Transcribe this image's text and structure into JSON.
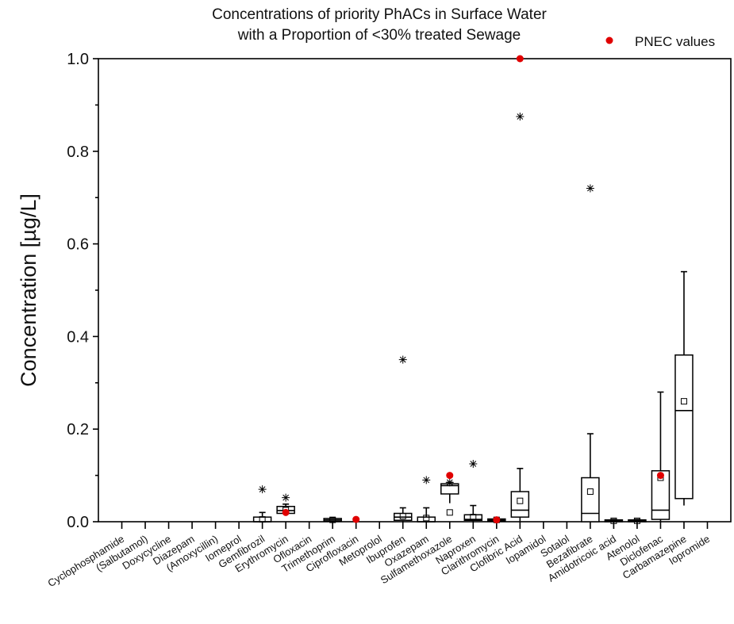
{
  "chart_data": {
    "type": "box",
    "title_lines": [
      "Concentrations of priority PhACs in Surface Water",
      "with a Proportion of <30% treated Sewage"
    ],
    "ylabel": "Concentration [µg/L]",
    "ylim": [
      0,
      1.0
    ],
    "yticks": [
      0.0,
      0.2,
      0.4,
      0.6,
      0.8,
      1.0
    ],
    "ytick_labels": [
      "0.0",
      "0.2",
      "0.4",
      "0.6",
      "0.8",
      "1.0"
    ],
    "grid": false,
    "legend": {
      "position": "top-right",
      "entries": [
        {
          "label": "PNEC values",
          "color": "#e00000",
          "marker": "circle"
        }
      ]
    },
    "categories": [
      "Cyclophosphamide",
      "(Salbutamol)",
      "Doxycycline",
      "Diazepam",
      "(Amoxycillin)",
      "Iomeprol",
      "Gemfibrozil",
      "Erythromycin",
      "Ofloxacin",
      "Trimethoprim",
      "Ciprofloxacin",
      "Metoprolol",
      "Ibuprofen",
      "Oxazepam",
      "Sulfamethoxazole",
      "Naproxen",
      "Clarithromycin",
      "Clofibric Acid",
      "Iopamidol",
      "Sotalol",
      "Bezafibrate",
      "Amidotricoic acid",
      "Atenolol",
      "Diclofenac",
      "Carbamazepine",
      "Iopromide"
    ],
    "boxes": [
      {
        "category": "Gemfibrozil",
        "q1": 0.0,
        "median": 0.0,
        "q3": 0.01,
        "whisker_low": 0.0,
        "whisker_high": 0.02,
        "mean": 0.005,
        "outliers": [
          0.07
        ]
      },
      {
        "category": "Erythromycin",
        "q1": 0.018,
        "median": 0.024,
        "q3": 0.033,
        "whisker_low": 0.015,
        "whisker_high": 0.038,
        "mean": 0.025,
        "outliers": [
          0.052
        ]
      },
      {
        "category": "Trimethoprim",
        "q1": 0.001,
        "median": 0.004,
        "q3": 0.007,
        "whisker_low": 0.0,
        "whisker_high": 0.008,
        "mean": 0.004,
        "outliers": []
      },
      {
        "category": "Ibuprofen",
        "q1": 0.003,
        "median": 0.01,
        "q3": 0.018,
        "whisker_low": 0.0,
        "whisker_high": 0.03,
        "mean": 0.012,
        "outliers": [
          0.35
        ]
      },
      {
        "category": "Oxazepam",
        "q1": 0.0,
        "median": 0.0,
        "q3": 0.01,
        "whisker_low": 0.0,
        "whisker_high": 0.03,
        "mean": 0.008,
        "outliers": [
          0.09
        ]
      },
      {
        "category": "Sulfamethoxazole",
        "q1": 0.06,
        "median": 0.078,
        "q3": 0.082,
        "whisker_low": 0.04,
        "whisker_high": 0.085,
        "mean": 0.02,
        "outliers": [
          0.085
        ]
      },
      {
        "category": "Naproxen",
        "q1": 0.003,
        "median": 0.005,
        "q3": 0.015,
        "whisker_low": 0.0,
        "whisker_high": 0.035,
        "mean": 0.01,
        "outliers": [
          0.125
        ]
      },
      {
        "category": "Clarithromycin",
        "q1": 0.002,
        "median": 0.004,
        "q3": 0.006,
        "whisker_low": 0.0,
        "whisker_high": 0.007,
        "mean": 0.004,
        "outliers": []
      },
      {
        "category": "Clofibric Acid",
        "q1": 0.01,
        "median": 0.025,
        "q3": 0.065,
        "whisker_low": 0.0,
        "whisker_high": 0.115,
        "mean": 0.045,
        "outliers": [
          0.875
        ]
      },
      {
        "category": "Bezafibrate",
        "q1": 0.0,
        "median": 0.018,
        "q3": 0.095,
        "whisker_low": 0.0,
        "whisker_high": 0.19,
        "mean": 0.065,
        "outliers": [
          0.72
        ]
      },
      {
        "category": "Amidotricoic acid",
        "q1": 0.0,
        "median": 0.002,
        "q3": 0.004,
        "whisker_low": 0.0,
        "whisker_high": 0.005,
        "mean": 0.002,
        "outliers": []
      },
      {
        "category": "Atenolol",
        "q1": 0.0,
        "median": 0.002,
        "q3": 0.004,
        "whisker_low": 0.0,
        "whisker_high": 0.005,
        "mean": 0.002,
        "outliers": []
      },
      {
        "category": "Diclofenac",
        "q1": 0.005,
        "median": 0.025,
        "q3": 0.11,
        "whisker_low": 0.0,
        "whisker_high": 0.28,
        "mean": 0.095,
        "outliers": []
      },
      {
        "category": "Carbamazepine",
        "q1": 0.05,
        "median": 0.24,
        "q3": 0.36,
        "whisker_low": 0.035,
        "whisker_high": 0.54,
        "mean": 0.26,
        "outliers": []
      }
    ],
    "pnec_values": [
      {
        "category": "Erythromycin",
        "value": 0.02
      },
      {
        "category": "Ciprofloxacin",
        "value": 0.005
      },
      {
        "category": "Sulfamethoxazole",
        "value": 0.1
      },
      {
        "category": "Clarithromycin",
        "value": 0.004
      },
      {
        "category": "Clofibric Acid",
        "value": 1.0
      },
      {
        "category": "Diclofenac",
        "value": 0.1
      }
    ]
  }
}
